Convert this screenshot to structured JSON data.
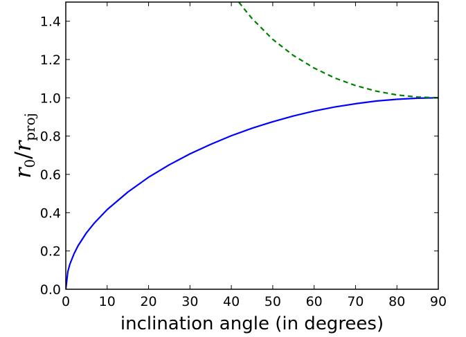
{
  "chart_data": {
    "type": "line",
    "xlabel": "inclination angle (in degrees)",
    "ylabel": {
      "base": "r",
      "sub": "0",
      "slash": "/",
      "base2": "r",
      "sub2": "proj"
    },
    "xlim": [
      0,
      90
    ],
    "ylim": [
      0.0,
      1.5
    ],
    "xticks": [
      "0",
      "10",
      "20",
      "30",
      "40",
      "50",
      "60",
      "70",
      "80",
      "90"
    ],
    "yticks": [
      "0.0",
      "0.2",
      "0.4",
      "0.6",
      "0.8",
      "1.0",
      "1.2",
      "1.4"
    ],
    "grid": false,
    "series": [
      {
        "style": "solid",
        "color": "#0000ff",
        "x": [
          0,
          0.5,
          1,
          2,
          3,
          5,
          7,
          10,
          15,
          20,
          25,
          30,
          35,
          40,
          45,
          50,
          55,
          60,
          65,
          70,
          75,
          80,
          85,
          90
        ],
        "y": [
          0.0,
          0.093,
          0.132,
          0.186,
          0.228,
          0.295,
          0.348,
          0.416,
          0.508,
          0.585,
          0.65,
          0.707,
          0.757,
          0.802,
          0.841,
          0.875,
          0.905,
          0.931,
          0.952,
          0.969,
          0.983,
          0.992,
          0.998,
          1.0
        ]
      },
      {
        "style": "dashed",
        "color": "#008000",
        "x": [
          41.8,
          43,
          45,
          50,
          55,
          60,
          65,
          70,
          75,
          80,
          85,
          90
        ],
        "y": [
          1.5,
          1.467,
          1.414,
          1.305,
          1.221,
          1.155,
          1.103,
          1.064,
          1.035,
          1.015,
          1.004,
          1.0
        ]
      }
    ]
  }
}
